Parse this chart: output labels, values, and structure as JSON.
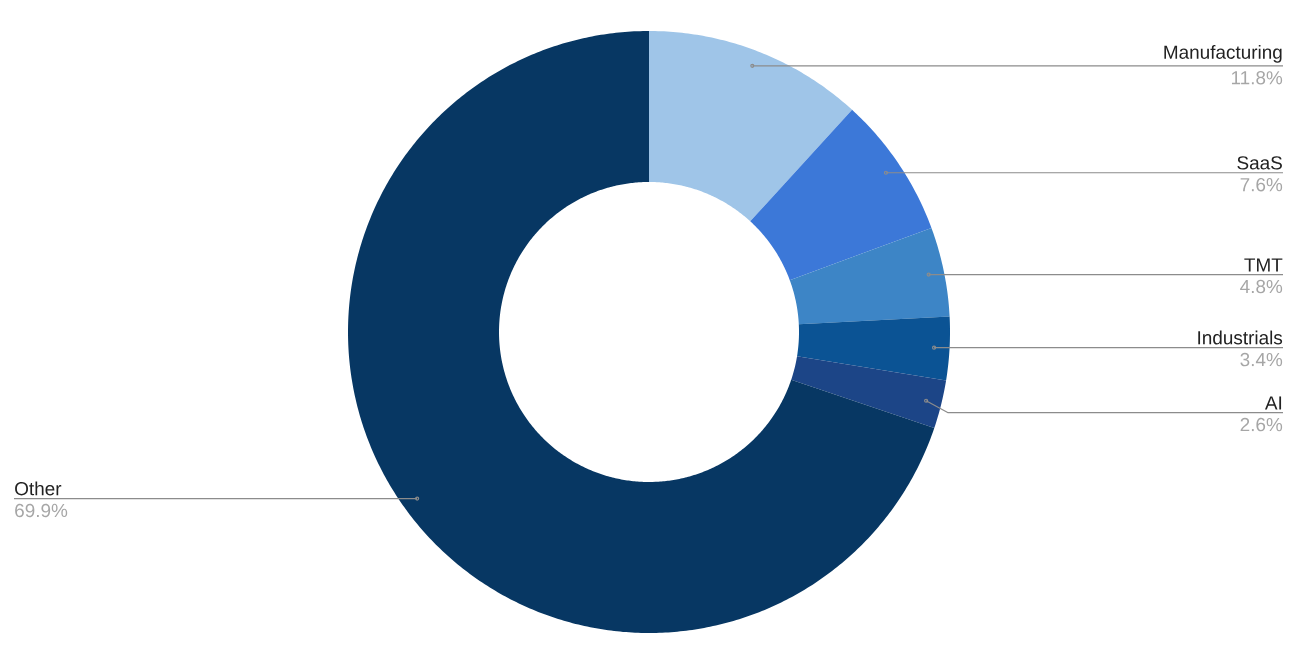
{
  "chart_data": {
    "type": "donut",
    "categories": [
      "Manufacturing",
      "SaaS",
      "TMT",
      "Industrials",
      "AI",
      "Other"
    ],
    "values": [
      11.8,
      7.6,
      4.8,
      3.4,
      2.6,
      69.9
    ],
    "colors": [
      "#9fc5e8",
      "#3c78d8",
      "#3d85c6",
      "#0b5394",
      "#1c4587",
      "#073763"
    ],
    "value_labels": [
      "11.8%",
      "7.6%",
      "4.8%",
      "3.4%",
      "2.6%",
      "69.9%"
    ]
  }
}
